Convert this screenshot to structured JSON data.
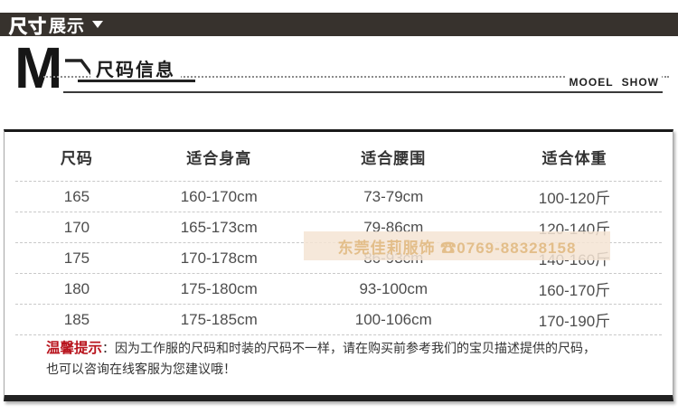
{
  "top_bar": {
    "title_bold": "尺寸",
    "title_light": "展示"
  },
  "brand_strip": {
    "letter": "M",
    "heading": "尺码信息",
    "right_caption": "MOOEL SHOW"
  },
  "size_table": {
    "columns": [
      "尺码",
      "适合身高",
      "适合腰围",
      "适合体重"
    ],
    "rows": [
      [
        "165",
        "160-170cm",
        "73-79cm",
        "100-120斤"
      ],
      [
        "170",
        "165-173cm",
        "79-86cm",
        "120-140斤"
      ],
      [
        "175",
        "170-178cm",
        "86-93cm",
        "140-160斤"
      ],
      [
        "180",
        "175-180cm",
        "93-100cm",
        "160-170斤"
      ],
      [
        "185",
        "175-185cm",
        "100-106cm",
        "170-190斤"
      ]
    ]
  },
  "watermark": {
    "text": "东莞佳莉服饰 ☎0769-88328158"
  },
  "notice": {
    "label": "温馨提示",
    "separator": "：",
    "line1": "因为工作服的尺码和时装的尺码不一样，请在购买前参考我们的宝贝描述提供的尺码，",
    "line2": "也可以咨询在线客服为您建议哦！"
  },
  "colors": {
    "top_bar_bg": "#37322d",
    "accent_red": "#b8141d",
    "watermark_bg": "#f4e4d2",
    "watermark_text": "#e8c9a2",
    "table_text": "#4d4d4d",
    "line_dark": "#222222"
  }
}
